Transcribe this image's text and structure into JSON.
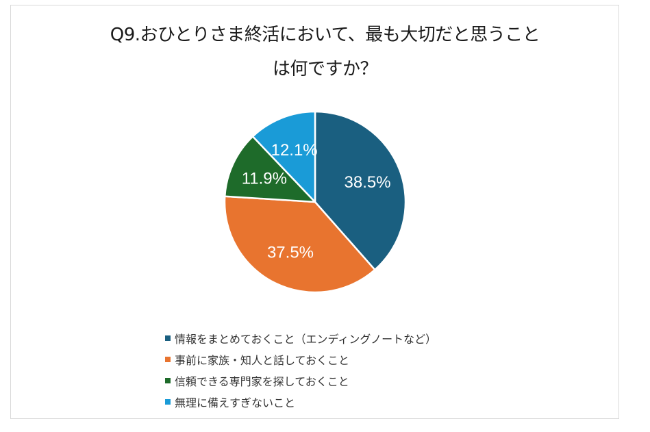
{
  "chart_data": {
    "type": "pie",
    "title": "Q9.おひとりさま終活において、最も大切だと思うことは何ですか？",
    "title_lines": [
      "Q9.おひとりさま終活において、最も大切だと思うこと",
      "は何ですか？"
    ],
    "categories": [
      "情報をまとめておくこと（エンディングノートなど）",
      "事前に家族・知人と話しておくこと",
      "信頼できる専門家を探しておくこと",
      "無理に備えすぎないこと"
    ],
    "values": [
      38.5,
      37.5,
      11.9,
      12.1
    ],
    "labels": [
      "38.5%",
      "37.5%",
      "11.9%",
      "12.1%"
    ],
    "colors": [
      "#1a5f80",
      "#e8742f",
      "#1e6b2a",
      "#1a9bd7"
    ],
    "legend_position": "bottom"
  }
}
